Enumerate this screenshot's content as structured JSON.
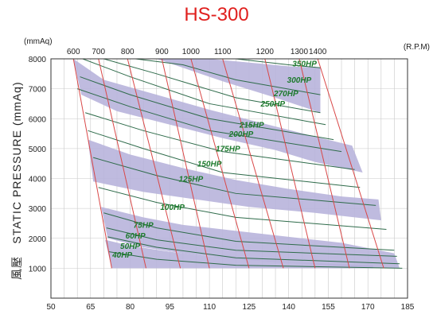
{
  "chart_data": {
    "type": "line",
    "title": "HS-300",
    "ylabel": "STATIC PRESSURE (mmAq)",
    "ylabel_cjk": "風壓",
    "y_unit": "(mmAq)",
    "rpm_unit": "(R.P.M)",
    "xlim": [
      50,
      185
    ],
    "ylim": [
      0,
      8000
    ],
    "x_ticks": [
      50,
      65,
      80,
      95,
      110,
      125,
      140,
      155,
      170,
      185
    ],
    "y_ticks": [
      1000,
      2000,
      3000,
      4000,
      5000,
      6000,
      7000,
      8000
    ],
    "grid": true,
    "colors": {
      "band_fill": "#b8b4dc",
      "band_stroke": "#2e6b4a",
      "rpm_line": "#d94848",
      "hp_label": "#1c7a2c",
      "title": "#e0201e"
    },
    "rpm_lines": [
      {
        "label": "600",
        "points": [
          [
            58.5,
            8000
          ],
          [
            73,
            1000
          ]
        ]
      },
      {
        "label": "700",
        "points": [
          [
            68,
            8000
          ],
          [
            86,
            1000
          ]
        ]
      },
      {
        "label": "800",
        "points": [
          [
            79,
            8000
          ],
          [
            99,
            1000
          ]
        ]
      },
      {
        "label": "900",
        "points": [
          [
            92,
            8000
          ],
          [
            110,
            1000
          ]
        ]
      },
      {
        "label": "1000",
        "points": [
          [
            103,
            8000
          ],
          [
            125,
            1000
          ]
        ]
      },
      {
        "label": "1100",
        "points": [
          [
            115,
            8000
          ],
          [
            138,
            1000
          ]
        ]
      },
      {
        "label": "1200",
        "points": [
          [
            131,
            8000
          ],
          [
            150,
            1000
          ]
        ]
      },
      {
        "label": "1300",
        "points": [
          [
            144,
            8000
          ],
          [
            163,
            1000
          ]
        ]
      },
      {
        "label": "1400",
        "points": [
          [
            151,
            8000
          ],
          [
            176,
            1000
          ]
        ]
      }
    ],
    "bands": [
      {
        "upper": [
          [
            58.5,
            8000
          ],
          [
            70,
            7300
          ],
          [
            90,
            6800
          ],
          [
            110,
            6300
          ],
          [
            130,
            5850
          ],
          [
            150,
            5400
          ],
          [
            164,
            5100
          ]
        ],
        "lower": [
          [
            61.5,
            6800
          ],
          [
            75,
            6250
          ],
          [
            95,
            5800
          ],
          [
            115,
            5350
          ],
          [
            135,
            4950
          ],
          [
            150,
            4550
          ],
          [
            168,
            4200
          ]
        ]
      },
      {
        "upper": [
          [
            64,
            5300
          ],
          [
            80,
            4800
          ],
          [
            100,
            4350
          ],
          [
            120,
            3950
          ],
          [
            140,
            3650
          ],
          [
            160,
            3400
          ],
          [
            174,
            3300
          ]
        ],
        "lower": [
          [
            66,
            3900
          ],
          [
            85,
            3550
          ],
          [
            105,
            3300
          ],
          [
            125,
            3050
          ],
          [
            150,
            2850
          ],
          [
            175,
            2600
          ]
        ]
      },
      {
        "upper": [
          [
            69,
            3050
          ],
          [
            85,
            2700
          ],
          [
            100,
            2450
          ],
          [
            120,
            2250
          ],
          [
            140,
            2050
          ],
          [
            160,
            1850
          ],
          [
            180,
            1500
          ]
        ],
        "lower": [
          [
            71.5,
            2000
          ],
          [
            85,
            1700
          ],
          [
            100,
            1500
          ],
          [
            120,
            1300
          ],
          [
            145,
            1150
          ],
          [
            165,
            1050
          ],
          [
            182,
            1000
          ]
        ]
      },
      {
        "upper": [
          [
            70.5,
            1950
          ],
          [
            80,
            1750
          ],
          [
            95,
            1550
          ],
          [
            110,
            1400
          ],
          [
            125,
            1300
          ],
          [
            140,
            1200
          ],
          [
            155,
            1150
          ],
          [
            172,
            1100
          ]
        ],
        "lower": [
          [
            73,
            1000
          ],
          [
            95,
            1000
          ],
          [
            120,
            1000
          ],
          [
            150,
            1000
          ],
          [
            172,
            1000
          ]
        ]
      }
    ],
    "bands_top": [
      {
        "upper": [
          [
            75,
            8000
          ],
          [
            90,
            8000
          ],
          [
            110,
            8000
          ],
          [
            140,
            7750
          ],
          [
            152,
            7700
          ]
        ],
        "lower": [
          [
            90,
            8000
          ],
          [
            100,
            7700
          ],
          [
            115,
            7250
          ],
          [
            135,
            6700
          ],
          [
            152,
            6200
          ]
        ]
      }
    ],
    "bands_top_note": "",
    "hp_curves": [
      {
        "label": "350HP",
        "points": [
          [
            100,
            8000
          ],
          [
            120,
            8000
          ],
          [
            140,
            7800
          ],
          [
            152,
            7700
          ]
        ],
        "label_at": [
          146,
          7750
        ]
      },
      {
        "label": "300HP",
        "points": [
          [
            82,
            8000
          ],
          [
            100,
            7800
          ],
          [
            120,
            7300
          ],
          [
            152,
            6800
          ]
        ],
        "label_at": [
          144,
          7200
        ]
      },
      {
        "label": "270HP",
        "points": [
          [
            70,
            8000
          ],
          [
            90,
            7500
          ],
          [
            120,
            6700
          ],
          [
            152,
            6200
          ]
        ],
        "label_at": [
          139,
          6750
        ]
      },
      {
        "label": "250HP",
        "points": [
          [
            62,
            8000
          ],
          [
            80,
            7400
          ],
          [
            110,
            6500
          ],
          [
            154,
            5800
          ]
        ],
        "label_at": [
          134,
          6400
        ]
      },
      {
        "label": "215HP",
        "points": [
          [
            61,
            7400
          ],
          [
            80,
            6800
          ],
          [
            110,
            6000
          ],
          [
            157,
            5300
          ]
        ],
        "label_at": [
          126,
          5700
        ]
      },
      {
        "label": "200HP",
        "points": [
          [
            60,
            7000
          ],
          [
            80,
            6400
          ],
          [
            110,
            5600
          ],
          [
            160,
            4900
          ]
        ],
        "label_at": [
          122,
          5400
        ]
      },
      {
        "label": "175HP",
        "points": [
          [
            63,
            6200
          ],
          [
            85,
            5600
          ],
          [
            115,
            4900
          ],
          [
            165,
            4300
          ]
        ],
        "label_at": [
          117,
          4900
        ]
      },
      {
        "label": "150HP",
        "points": [
          [
            64,
            5600
          ],
          [
            85,
            5000
          ],
          [
            115,
            4200
          ],
          [
            167,
            3700
          ]
        ],
        "label_at": [
          110,
          4400
        ]
      },
      {
        "label": "125HP",
        "points": [
          [
            66,
            4700
          ],
          [
            90,
            4100
          ],
          [
            120,
            3500
          ],
          [
            173,
            3100
          ]
        ],
        "label_at": [
          103,
          3900
        ]
      },
      {
        "label": "100HP",
        "points": [
          [
            68,
            3700
          ],
          [
            90,
            3200
          ],
          [
            120,
            2700
          ],
          [
            177,
            2300
          ]
        ],
        "label_at": [
          96,
          2950
        ]
      },
      {
        "label": "75HP",
        "points": [
          [
            70,
            2850
          ],
          [
            90,
            2350
          ],
          [
            120,
            1900
          ],
          [
            180,
            1600
          ]
        ],
        "label_at": [
          85,
          2350
        ]
      },
      {
        "label": "60HP",
        "points": [
          [
            71,
            2350
          ],
          [
            90,
            1950
          ],
          [
            120,
            1600
          ],
          [
            181,
            1400
          ]
        ],
        "label_at": [
          82,
          2000
        ]
      },
      {
        "label": "50HP",
        "points": [
          [
            71.5,
            2050
          ],
          [
            90,
            1700
          ],
          [
            120,
            1350
          ],
          [
            182,
            1150
          ]
        ],
        "label_at": [
          80,
          1650
        ]
      },
      {
        "label": "40HP",
        "points": [
          [
            72,
            1550
          ],
          [
            90,
            1300
          ],
          [
            120,
            1100
          ],
          [
            183,
            1000
          ]
        ],
        "label_at": [
          77,
          1350
        ]
      }
    ]
  }
}
